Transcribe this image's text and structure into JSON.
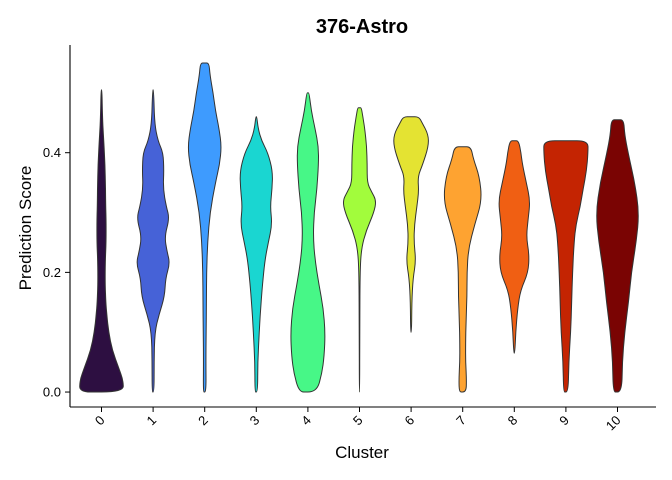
{
  "chart_data": {
    "type": "violin",
    "title": "376-Astro",
    "xlabel": "Cluster",
    "ylabel": "Prediction Score",
    "categories": [
      "0",
      "1",
      "2",
      "3",
      "4",
      "5",
      "6",
      "7",
      "8",
      "9",
      "10"
    ],
    "yticks": [
      0.0,
      0.2,
      0.4
    ],
    "ytick_labels": [
      "0.0",
      "0.2",
      "0.4"
    ],
    "ylim": [
      -0.025,
      0.58
    ],
    "grid": false,
    "legend": "none",
    "colors": [
      "#2d0f41",
      "#4662d7",
      "#3e9bfe",
      "#1ad6d1",
      "#47f787",
      "#a2fc3c",
      "#e4e332",
      "#fea331",
      "#f05f13",
      "#c42402",
      "#7a0403"
    ],
    "violins": [
      {
        "category": "0",
        "ymin": 0.0,
        "ymax": 0.505,
        "width": [
          [
            0.0,
            0.92
          ],
          [
            0.02,
            0.9
          ],
          [
            0.04,
            0.72
          ],
          [
            0.07,
            0.45
          ],
          [
            0.1,
            0.3
          ],
          [
            0.13,
            0.22
          ],
          [
            0.15,
            0.18
          ],
          [
            0.18,
            0.15
          ],
          [
            0.22,
            0.16
          ],
          [
            0.25,
            0.19
          ],
          [
            0.29,
            0.19
          ],
          [
            0.32,
            0.17
          ],
          [
            0.36,
            0.16
          ],
          [
            0.4,
            0.12
          ],
          [
            0.43,
            0.08
          ],
          [
            0.46,
            0.04
          ],
          [
            0.505,
            0.02
          ]
        ]
      },
      {
        "category": "1",
        "ymin": 0.0,
        "ymax": 0.505,
        "width": [
          [
            0.0,
            0.04
          ],
          [
            0.05,
            0.04
          ],
          [
            0.1,
            0.07
          ],
          [
            0.13,
            0.25
          ],
          [
            0.16,
            0.48
          ],
          [
            0.19,
            0.52
          ],
          [
            0.215,
            0.7
          ],
          [
            0.235,
            0.58
          ],
          [
            0.26,
            0.48
          ],
          [
            0.29,
            0.68
          ],
          [
            0.31,
            0.55
          ],
          [
            0.34,
            0.42
          ],
          [
            0.37,
            0.45
          ],
          [
            0.4,
            0.42
          ],
          [
            0.42,
            0.2
          ],
          [
            0.45,
            0.06
          ],
          [
            0.505,
            0.02
          ]
        ]
      },
      {
        "category": "2",
        "ymin": 0.0,
        "ymax": 0.55,
        "width": [
          [
            0.0,
            0.06
          ],
          [
            0.05,
            0.05
          ],
          [
            0.1,
            0.06
          ],
          [
            0.15,
            0.07
          ],
          [
            0.2,
            0.08
          ],
          [
            0.25,
            0.12
          ],
          [
            0.3,
            0.22
          ],
          [
            0.35,
            0.45
          ],
          [
            0.38,
            0.62
          ],
          [
            0.41,
            0.7
          ],
          [
            0.44,
            0.6
          ],
          [
            0.47,
            0.45
          ],
          [
            0.5,
            0.35
          ],
          [
            0.53,
            0.22
          ],
          [
            0.55,
            0.18
          ]
        ]
      },
      {
        "category": "3",
        "ymin": 0.0,
        "ymax": 0.46,
        "width": [
          [
            0.0,
            0.06
          ],
          [
            0.05,
            0.06
          ],
          [
            0.1,
            0.12
          ],
          [
            0.15,
            0.2
          ],
          [
            0.18,
            0.26
          ],
          [
            0.22,
            0.36
          ],
          [
            0.25,
            0.5
          ],
          [
            0.28,
            0.66
          ],
          [
            0.31,
            0.58
          ],
          [
            0.34,
            0.66
          ],
          [
            0.37,
            0.68
          ],
          [
            0.4,
            0.48
          ],
          [
            0.42,
            0.22
          ],
          [
            0.44,
            0.08
          ],
          [
            0.46,
            0.02
          ]
        ]
      },
      {
        "category": "4",
        "ymin": 0.0,
        "ymax": 0.5,
        "width": [
          [
            0.0,
            0.36
          ],
          [
            0.03,
            0.58
          ],
          [
            0.06,
            0.68
          ],
          [
            0.1,
            0.72
          ],
          [
            0.14,
            0.64
          ],
          [
            0.18,
            0.46
          ],
          [
            0.22,
            0.3
          ],
          [
            0.26,
            0.22
          ],
          [
            0.3,
            0.26
          ],
          [
            0.34,
            0.38
          ],
          [
            0.38,
            0.44
          ],
          [
            0.41,
            0.44
          ],
          [
            0.44,
            0.3
          ],
          [
            0.47,
            0.14
          ],
          [
            0.5,
            0.05
          ]
        ]
      },
      {
        "category": "5",
        "ymin": 0.0,
        "ymax": 0.475,
        "width": [
          [
            0.0,
            0.01
          ],
          [
            0.1,
            0.01
          ],
          [
            0.2,
            0.02
          ],
          [
            0.24,
            0.08
          ],
          [
            0.27,
            0.28
          ],
          [
            0.3,
            0.6
          ],
          [
            0.32,
            0.7
          ],
          [
            0.335,
            0.5
          ],
          [
            0.35,
            0.32
          ],
          [
            0.38,
            0.32
          ],
          [
            0.41,
            0.3
          ],
          [
            0.44,
            0.22
          ],
          [
            0.46,
            0.14
          ],
          [
            0.475,
            0.08
          ]
        ]
      },
      {
        "category": "6",
        "ymin": 0.1,
        "ymax": 0.46,
        "width": [
          [
            0.1,
            0.02
          ],
          [
            0.15,
            0.03
          ],
          [
            0.19,
            0.08
          ],
          [
            0.22,
            0.2
          ],
          [
            0.25,
            0.12
          ],
          [
            0.28,
            0.14
          ],
          [
            0.31,
            0.24
          ],
          [
            0.335,
            0.32
          ],
          [
            0.36,
            0.28
          ],
          [
            0.38,
            0.48
          ],
          [
            0.41,
            0.72
          ],
          [
            0.43,
            0.72
          ],
          [
            0.45,
            0.46
          ],
          [
            0.46,
            0.32
          ]
        ]
      },
      {
        "category": "7",
        "ymin": 0.0,
        "ymax": 0.41,
        "width": [
          [
            0.0,
            0.14
          ],
          [
            0.02,
            0.16
          ],
          [
            0.05,
            0.12
          ],
          [
            0.08,
            0.12
          ],
          [
            0.12,
            0.14
          ],
          [
            0.16,
            0.18
          ],
          [
            0.2,
            0.18
          ],
          [
            0.24,
            0.24
          ],
          [
            0.28,
            0.5
          ],
          [
            0.32,
            0.8
          ],
          [
            0.36,
            0.7
          ],
          [
            0.39,
            0.44
          ],
          [
            0.41,
            0.34
          ]
        ]
      },
      {
        "category": "8",
        "ymin": 0.065,
        "ymax": 0.42,
        "width": [
          [
            0.065,
            0.02
          ],
          [
            0.1,
            0.06
          ],
          [
            0.14,
            0.14
          ],
          [
            0.17,
            0.26
          ],
          [
            0.2,
            0.58
          ],
          [
            0.23,
            0.62
          ],
          [
            0.26,
            0.5
          ],
          [
            0.29,
            0.58
          ],
          [
            0.32,
            0.66
          ],
          [
            0.35,
            0.5
          ],
          [
            0.38,
            0.34
          ],
          [
            0.4,
            0.28
          ],
          [
            0.42,
            0.18
          ]
        ]
      },
      {
        "category": "9",
        "ymin": 0.0,
        "ymax": 0.42,
        "width": [
          [
            0.0,
            0.1
          ],
          [
            0.05,
            0.12
          ],
          [
            0.1,
            0.2
          ],
          [
            0.15,
            0.24
          ],
          [
            0.2,
            0.28
          ],
          [
            0.25,
            0.34
          ],
          [
            0.28,
            0.42
          ],
          [
            0.31,
            0.6
          ],
          [
            0.34,
            0.72
          ],
          [
            0.37,
            0.86
          ],
          [
            0.4,
            0.92
          ],
          [
            0.42,
            0.92
          ]
        ]
      },
      {
        "category": "10",
        "ymin": 0.0,
        "ymax": 0.455,
        "width": [
          [
            0.0,
            0.18
          ],
          [
            0.05,
            0.2
          ],
          [
            0.1,
            0.3
          ],
          [
            0.15,
            0.46
          ],
          [
            0.2,
            0.58
          ],
          [
            0.25,
            0.78
          ],
          [
            0.3,
            0.9
          ],
          [
            0.35,
            0.72
          ],
          [
            0.4,
            0.44
          ],
          [
            0.43,
            0.3
          ],
          [
            0.455,
            0.26
          ]
        ]
      }
    ]
  }
}
